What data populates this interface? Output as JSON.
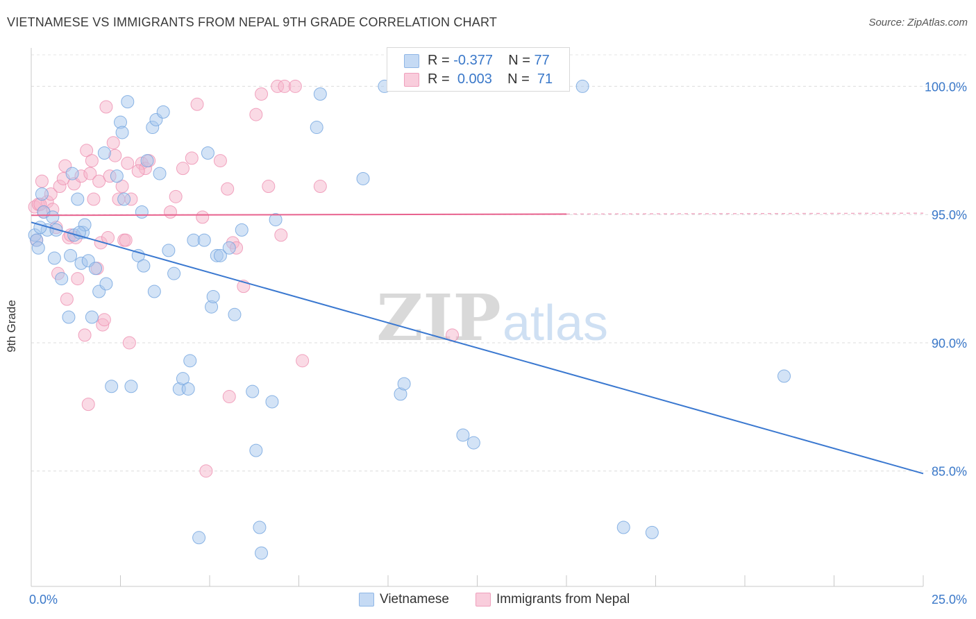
{
  "title": "VIETNAMESE VS IMMIGRANTS FROM NEPAL 9TH GRADE CORRELATION CHART",
  "source": "Source: ZipAtlas.com",
  "watermark": {
    "zip": "ZIP",
    "atlas": "atlas"
  },
  "legend": {
    "rows": [
      {
        "r_label": "R =",
        "r_value": "-0.377",
        "n_label": "N =",
        "n_value": "77",
        "color": "#a7c7ee"
      },
      {
        "r_label": "R =",
        "r_value": "0.003",
        "n_label": "N =",
        "n_value": "71",
        "color": "#f5b6cb"
      }
    ]
  },
  "bottom_legend": [
    {
      "label": "Vietnamese",
      "color": "#a7c7ee"
    },
    {
      "label": "Immigrants from Nepal",
      "color": "#f5b6cb"
    }
  ],
  "chart_data": {
    "type": "scatter",
    "title": "VIETNAMESE VS IMMIGRANTS FROM NEPAL 9TH GRADE CORRELATION CHART",
    "xlabel": "",
    "ylabel": "9th Grade",
    "xlim": [
      0,
      25
    ],
    "ylim": [
      80.5,
      101.5
    ],
    "x_tick_labels": [
      "0.0%",
      "25.0%"
    ],
    "y_ticks": [
      {
        "value": 100,
        "label": "100.0%"
      },
      {
        "value": 95,
        "label": "95.0%"
      },
      {
        "value": 90,
        "label": "90.0%"
      },
      {
        "value": 85,
        "label": "85.0%"
      }
    ],
    "grid": "horizontal dashed",
    "legend_position": "top-center",
    "series": [
      {
        "name": "Vietnamese",
        "color": "#a7c7ee",
        "edge": "#6fa3de",
        "line_color": "#3a78d0",
        "trend": {
          "x": [
            0,
            25
          ],
          "y": [
            94.7,
            84.9
          ],
          "style": "solid"
        },
        "points": [
          [
            0.1,
            94.2
          ],
          [
            0.15,
            94.0
          ],
          [
            0.2,
            93.7
          ],
          [
            0.3,
            95.8
          ],
          [
            0.35,
            95.1
          ],
          [
            0.45,
            94.4
          ],
          [
            0.6,
            94.9
          ],
          [
            0.65,
            93.3
          ],
          [
            0.7,
            94.4
          ],
          [
            0.85,
            92.5
          ],
          [
            1.05,
            91.0
          ],
          [
            1.1,
            93.4
          ],
          [
            1.15,
            96.6
          ],
          [
            1.2,
            94.2
          ],
          [
            1.3,
            95.6
          ],
          [
            1.4,
            93.1
          ],
          [
            1.45,
            94.3
          ],
          [
            1.5,
            94.6
          ],
          [
            1.6,
            93.2
          ],
          [
            1.7,
            91.0
          ],
          [
            1.8,
            92.9
          ],
          [
            1.9,
            92.0
          ],
          [
            2.05,
            97.4
          ],
          [
            2.1,
            92.3
          ],
          [
            2.25,
            88.3
          ],
          [
            2.4,
            96.5
          ],
          [
            2.5,
            98.6
          ],
          [
            2.55,
            98.2
          ],
          [
            2.6,
            95.6
          ],
          [
            2.7,
            99.4
          ],
          [
            2.8,
            88.3
          ],
          [
            3.0,
            93.4
          ],
          [
            3.1,
            95.1
          ],
          [
            3.15,
            93.0
          ],
          [
            3.25,
            97.1
          ],
          [
            3.4,
            98.4
          ],
          [
            3.45,
            92.0
          ],
          [
            3.5,
            98.7
          ],
          [
            3.6,
            96.6
          ],
          [
            3.7,
            99.0
          ],
          [
            3.85,
            93.6
          ],
          [
            4.0,
            92.7
          ],
          [
            4.15,
            88.2
          ],
          [
            4.25,
            88.6
          ],
          [
            4.4,
            88.2
          ],
          [
            4.45,
            89.3
          ],
          [
            4.55,
            94.0
          ],
          [
            4.7,
            82.4
          ],
          [
            4.85,
            94.0
          ],
          [
            4.95,
            97.4
          ],
          [
            5.05,
            91.4
          ],
          [
            5.1,
            91.8
          ],
          [
            5.2,
            93.4
          ],
          [
            5.3,
            93.4
          ],
          [
            5.55,
            93.7
          ],
          [
            5.7,
            91.1
          ],
          [
            5.9,
            94.4
          ],
          [
            6.2,
            88.1
          ],
          [
            6.3,
            85.8
          ],
          [
            6.4,
            82.8
          ],
          [
            6.45,
            81.8
          ],
          [
            6.75,
            87.7
          ],
          [
            6.85,
            94.8
          ],
          [
            8.0,
            98.4
          ],
          [
            8.1,
            99.7
          ],
          [
            9.3,
            96.4
          ],
          [
            9.9,
            100.0
          ],
          [
            10.35,
            88.0
          ],
          [
            10.45,
            88.4
          ],
          [
            12.1,
            86.4
          ],
          [
            12.4,
            86.1
          ],
          [
            15.45,
            100.0
          ],
          [
            16.6,
            82.8
          ],
          [
            17.4,
            82.6
          ],
          [
            21.1,
            88.7
          ],
          [
            0.25,
            94.5
          ],
          [
            1.35,
            94.3
          ]
        ]
      },
      {
        "name": "Immigrants from Nepal",
        "color": "#f5b6cb",
        "edge": "#ee8fb0",
        "line_color": "#e8628e",
        "trend": {
          "x": [
            0,
            15
          ],
          "y": [
            94.97,
            95.02
          ],
          "style": "solid",
          "dashed_extension_to": 25
        },
        "points": [
          [
            0.1,
            95.3
          ],
          [
            0.15,
            94.0
          ],
          [
            0.2,
            95.4
          ],
          [
            0.3,
            96.3
          ],
          [
            0.35,
            95.1
          ],
          [
            0.45,
            95.5
          ],
          [
            0.55,
            95.8
          ],
          [
            0.6,
            95.2
          ],
          [
            0.7,
            94.5
          ],
          [
            0.75,
            92.7
          ],
          [
            0.8,
            96.1
          ],
          [
            0.9,
            96.4
          ],
          [
            0.95,
            96.9
          ],
          [
            1.0,
            91.7
          ],
          [
            1.05,
            94.1
          ],
          [
            1.1,
            94.2
          ],
          [
            1.2,
            96.2
          ],
          [
            1.3,
            92.5
          ],
          [
            1.4,
            96.5
          ],
          [
            1.5,
            90.3
          ],
          [
            1.55,
            97.5
          ],
          [
            1.6,
            87.6
          ],
          [
            1.65,
            96.6
          ],
          [
            1.7,
            97.1
          ],
          [
            1.75,
            95.6
          ],
          [
            1.85,
            92.9
          ],
          [
            1.9,
            96.3
          ],
          [
            1.95,
            93.9
          ],
          [
            2.0,
            90.7
          ],
          [
            2.05,
            90.9
          ],
          [
            2.1,
            99.2
          ],
          [
            2.15,
            94.1
          ],
          [
            2.2,
            96.5
          ],
          [
            2.3,
            97.8
          ],
          [
            2.35,
            97.3
          ],
          [
            2.45,
            95.6
          ],
          [
            2.55,
            96.1
          ],
          [
            2.6,
            94.0
          ],
          [
            2.7,
            97.0
          ],
          [
            2.75,
            90.0
          ],
          [
            2.8,
            95.6
          ],
          [
            3.1,
            97.0
          ],
          [
            3.2,
            96.8
          ],
          [
            3.3,
            97.1
          ],
          [
            3.9,
            95.1
          ],
          [
            4.05,
            95.7
          ],
          [
            4.25,
            96.8
          ],
          [
            4.5,
            97.2
          ],
          [
            4.65,
            99.3
          ],
          [
            4.8,
            94.9
          ],
          [
            4.9,
            85.0
          ],
          [
            5.3,
            97.1
          ],
          [
            5.5,
            96.0
          ],
          [
            5.55,
            87.9
          ],
          [
            5.65,
            93.9
          ],
          [
            5.75,
            93.7
          ],
          [
            5.95,
            92.2
          ],
          [
            6.3,
            98.9
          ],
          [
            6.45,
            99.7
          ],
          [
            6.65,
            96.1
          ],
          [
            6.9,
            100.0
          ],
          [
            7.0,
            94.2
          ],
          [
            7.1,
            100.0
          ],
          [
            7.4,
            100.0
          ],
          [
            7.6,
            89.3
          ],
          [
            8.1,
            96.1
          ],
          [
            0.25,
            95.4
          ],
          [
            1.25,
            94.1
          ],
          [
            2.65,
            94.0
          ],
          [
            3.0,
            96.7
          ],
          [
            11.8,
            90.3
          ]
        ]
      }
    ]
  }
}
